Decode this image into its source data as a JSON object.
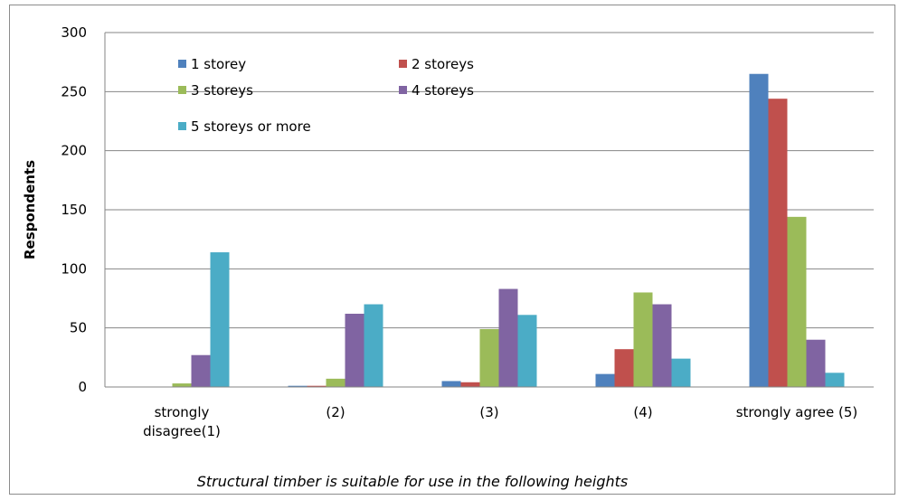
{
  "chart_data": {
    "type": "bar",
    "title": "",
    "xlabel": "Structural timber  is suitable for use in the following heights",
    "ylabel": "Respondents",
    "ylim": [
      0,
      300
    ],
    "yticks": [
      0,
      50,
      100,
      150,
      200,
      250,
      300
    ],
    "grid": true,
    "legend_position": "top-left",
    "categories": [
      [
        "strongly",
        "disagree(1)"
      ],
      [
        "(2)"
      ],
      [
        "(3)"
      ],
      [
        "(4)"
      ],
      [
        "strongly agree (5)"
      ]
    ],
    "series": [
      {
        "name": "1 storey",
        "color": "#4F81BD",
        "values": [
          0,
          1,
          5,
          11,
          265
        ]
      },
      {
        "name": "2 storeys",
        "color": "#C0504D",
        "values": [
          0,
          1,
          4,
          32,
          244
        ]
      },
      {
        "name": "3 storeys",
        "color": "#9BBB59",
        "values": [
          3,
          7,
          49,
          80,
          144
        ]
      },
      {
        "name": "4 storeys",
        "color": "#8064A2",
        "values": [
          27,
          62,
          83,
          70,
          40
        ]
      },
      {
        "name": "5 storeys or more",
        "color": "#4BACC6",
        "values": [
          114,
          70,
          61,
          24,
          12
        ]
      }
    ]
  }
}
